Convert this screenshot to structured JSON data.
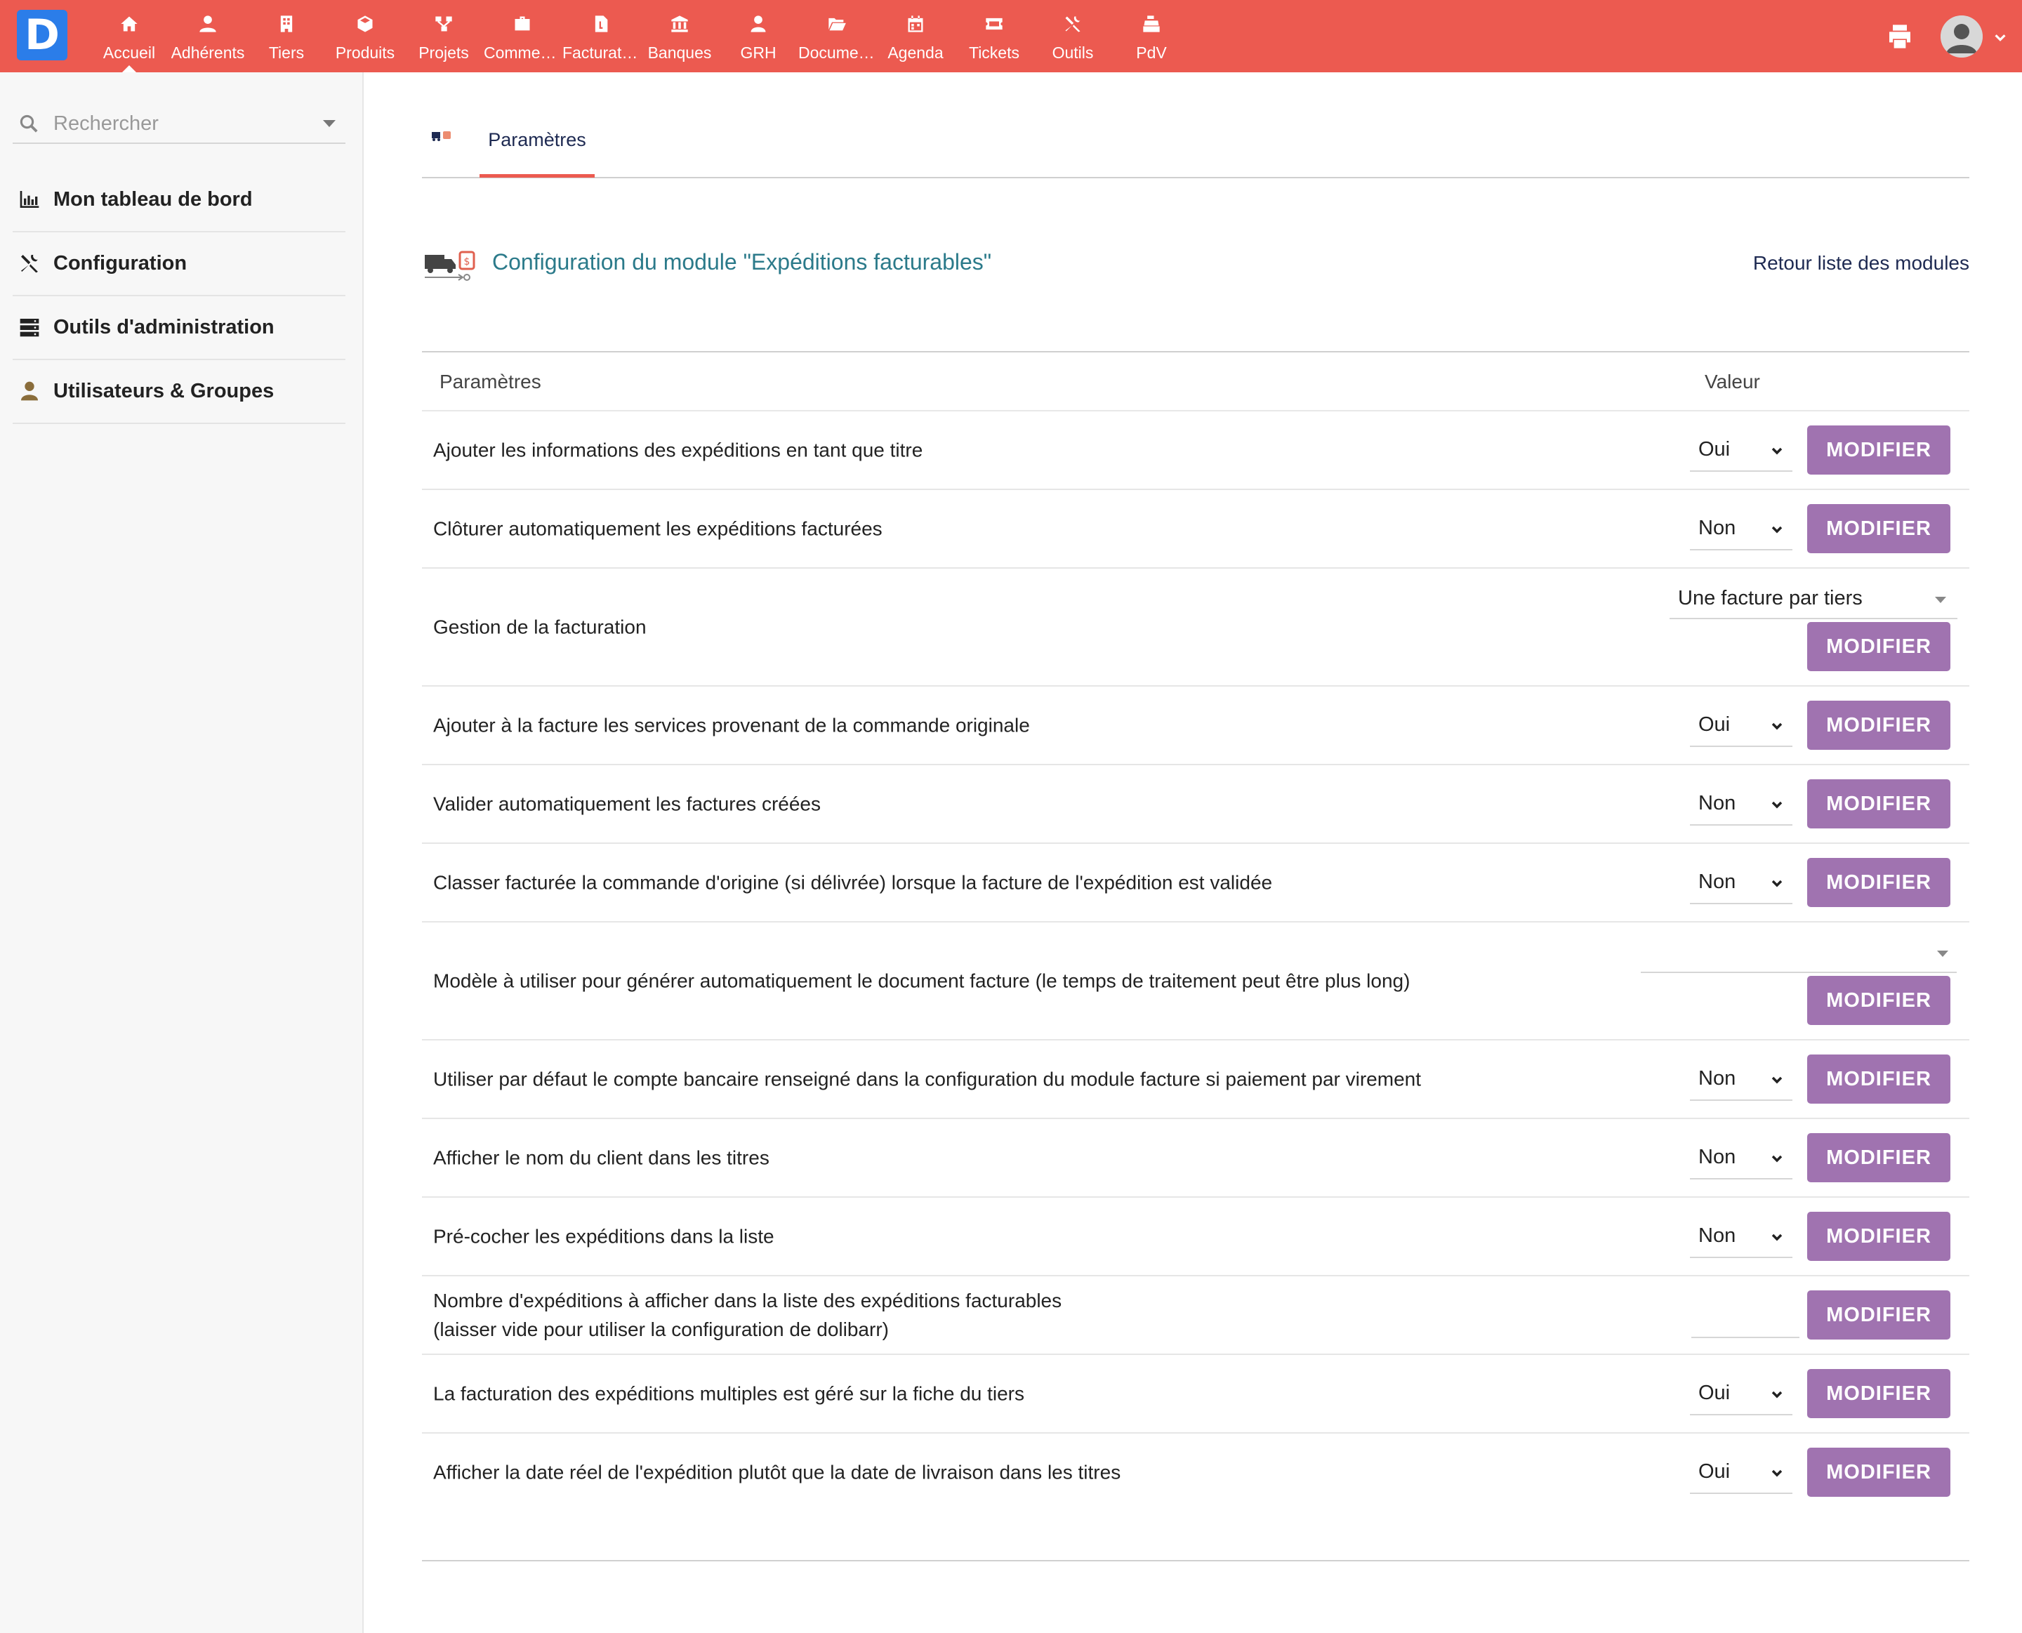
{
  "app": {
    "logo_letter": "D"
  },
  "topnav": {
    "items": [
      {
        "label": "Accueil",
        "icon": "home-icon"
      },
      {
        "label": "Adhérents",
        "icon": "member-icon"
      },
      {
        "label": "Tiers",
        "icon": "building-icon"
      },
      {
        "label": "Produits",
        "icon": "cube-icon"
      },
      {
        "label": "Projets",
        "icon": "project-icon"
      },
      {
        "label": "Commerce",
        "icon": "briefcase-icon"
      },
      {
        "label": "Facturation",
        "icon": "invoice-icon"
      },
      {
        "label": "Banques",
        "icon": "bank-icon"
      },
      {
        "label": "GRH",
        "icon": "hr-icon"
      },
      {
        "label": "Documents",
        "icon": "folder-icon"
      },
      {
        "label": "Agenda",
        "icon": "calendar-icon"
      },
      {
        "label": "Tickets",
        "icon": "ticket-icon"
      },
      {
        "label": "Outils",
        "icon": "tools-icon"
      },
      {
        "label": "PdV",
        "icon": "cash-register-icon"
      }
    ],
    "active_index": 0
  },
  "sidebar": {
    "search_placeholder": "Rechercher",
    "items": [
      {
        "label": "Mon tableau de bord",
        "icon": "dashboard-icon"
      },
      {
        "label": "Configuration",
        "icon": "tools-icon"
      },
      {
        "label": "Outils d'administration",
        "icon": "server-icon"
      },
      {
        "label": "Utilisateurs & Groupes",
        "icon": "user-icon"
      }
    ]
  },
  "tabs": {
    "params_label": "Paramètres"
  },
  "page": {
    "title": "Configuration du module \"Expéditions facturables\"",
    "back_link": "Retour liste des modules"
  },
  "settings": {
    "header_param": "Paramètres",
    "header_value": "Valeur",
    "button_label": "MODIFIER",
    "rows": [
      {
        "label": "Ajouter les informations des expéditions en tant que titre",
        "value": "Oui"
      },
      {
        "label": "Clôturer automatiquement les expéditions facturées",
        "value": "Non"
      },
      {
        "label": "Gestion de la facturation",
        "value": "Une facture par tiers"
      },
      {
        "label": "Ajouter à la facture les services provenant de la commande originale",
        "value": "Oui"
      },
      {
        "label": "Valider automatiquement les factures créées",
        "value": "Non"
      },
      {
        "label": "Classer facturée la commande d'origine (si délivrée) lorsque la facture de l'expédition est validée",
        "value": "Non"
      },
      {
        "label": "Modèle à utiliser pour générer automatiquement le document facture (le temps de traitement peut être plus long)",
        "value": ""
      },
      {
        "label": "Utiliser par défaut le compte bancaire renseigné dans la configuration du module facture si paiement par virement",
        "value": "Non"
      },
      {
        "label": "Afficher le nom du client dans les titres",
        "value": "Non"
      },
      {
        "label": "Pré-cocher les expéditions dans la liste",
        "value": "Non"
      },
      {
        "label_line1": "Nombre d'expéditions à afficher dans la liste des expéditions facturables",
        "label_line2": "(laisser vide pour utiliser la configuration de dolibarr)",
        "value": ""
      },
      {
        "label": "La facturation des expéditions multiples est géré sur la fiche du tiers",
        "value": "Oui"
      },
      {
        "label": "Afficher la date réel de l'expédition plutôt que la date de livraison dans les titres",
        "value": "Oui"
      }
    ]
  },
  "colors": {
    "topbar": "#ec5a50",
    "button": "#a073b0",
    "title": "#2b7a8a",
    "link": "#1e2a52"
  }
}
